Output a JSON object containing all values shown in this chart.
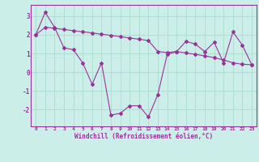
{
  "background_color": "#cceee8",
  "grid_color": "#aaddcc",
  "line_color": "#993399",
  "x_hours": [
    0,
    1,
    2,
    3,
    4,
    5,
    6,
    7,
    8,
    9,
    10,
    11,
    12,
    13,
    14,
    15,
    16,
    17,
    18,
    19,
    20,
    21,
    22,
    23
  ],
  "y_actual": [
    2.0,
    3.2,
    2.4,
    1.3,
    1.2,
    0.5,
    -0.65,
    0.5,
    -2.3,
    -2.2,
    -1.8,
    -1.8,
    -2.4,
    -1.2,
    0.95,
    1.1,
    1.65,
    1.5,
    1.1,
    1.6,
    0.5,
    2.15,
    1.45,
    0.4
  ],
  "y_trend": [
    2.0,
    2.4,
    2.35,
    2.28,
    2.22,
    2.16,
    2.1,
    2.03,
    1.97,
    1.9,
    1.83,
    1.76,
    1.69,
    1.1,
    1.05,
    1.1,
    1.03,
    0.95,
    0.87,
    0.78,
    0.65,
    0.5,
    0.42,
    0.4
  ],
  "xlabel": "Windchill (Refroidissement éolien,°C)",
  "ylim": [
    -2.9,
    3.6
  ],
  "yticks": [
    -2,
    -1,
    0,
    1,
    2,
    3
  ],
  "xlim": [
    -0.5,
    23.5
  ]
}
